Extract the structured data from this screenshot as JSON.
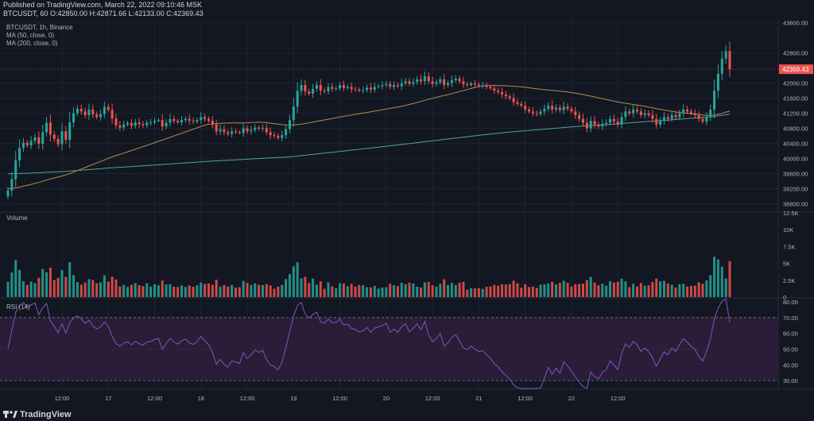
{
  "header": {
    "published": "Published on TradingView.com, March 22, 2022 09:10:46 MSK",
    "ohlc": "BTCUSDT, 60 O:42850.00 H:42871.66 L:42133.00 C:42369.43"
  },
  "brand": "TradingView",
  "colors": {
    "bg": "#131722",
    "up": "#26a69a",
    "down": "#ef5350",
    "ma50": "#b98a4e",
    "ma200": "#4fa39a",
    "rsi": "#7e57c2",
    "rsi_band": "#2b1c38",
    "grid": "#1f2330"
  },
  "chart_data": [
    {
      "type": "candlestick",
      "legend": [
        "BTCUSDT, 1h, Binance",
        "MA (50, close, 0)",
        "MA (200, close, 0)"
      ],
      "ylim": [
        38600,
        43700
      ],
      "y_ticks": [
        "43600.00",
        "42800.00",
        "42000.00",
        "41600.00",
        "41200.00",
        "40800.00",
        "40400.00",
        "40000.00",
        "39600.00",
        "39200.00",
        "38800.00"
      ],
      "y_tick_values": [
        43600,
        42800,
        42000,
        41600,
        41200,
        40800,
        40400,
        40000,
        39600,
        39200,
        38800
      ],
      "last_price": "42369.43",
      "last_price_value": 42369.43,
      "x_ticks": [
        "12:00",
        "17",
        "12:00",
        "18",
        "12:00",
        "19",
        "12:00",
        "20",
        "12:00",
        "21",
        "12:00",
        "22",
        "12:00"
      ],
      "closes": [
        39150,
        39450,
        39950,
        40280,
        40420,
        40350,
        40470,
        40560,
        40390,
        40700,
        40950,
        40630,
        40520,
        40380,
        40720,
        40500,
        40960,
        41200,
        41320,
        41250,
        41150,
        41300,
        41170,
        41100,
        41180,
        41370,
        41290,
        41060,
        40880,
        40820,
        40900,
        40940,
        40870,
        40960,
        40910,
        40880,
        40950,
        40960,
        41000,
        41020,
        40850,
        40950,
        41050,
        41000,
        40960,
        41020,
        41050,
        41000,
        40980,
        41020,
        41100,
        41050,
        41000,
        40900,
        40720,
        40780,
        40700,
        40650,
        40720,
        40700,
        40680,
        40800,
        40720,
        40760,
        40820,
        40790,
        40810,
        40700,
        40620,
        40600,
        40550,
        40620,
        40780,
        41020,
        41380,
        41800,
        41950,
        41780,
        41720,
        41850,
        41950,
        41800,
        41780,
        41900,
        41850,
        41860,
        41950,
        41870,
        41900,
        41840,
        41830,
        41800,
        41820,
        41880,
        41830,
        41900,
        41920,
        41950,
        41980,
        41900,
        41950,
        41920,
        42000,
        42050,
        41980,
        42030,
        42100,
        42050,
        42180,
        42050,
        41980,
        42020,
        42100,
        41950,
        42000,
        42080,
        42120,
        42050,
        41970,
        41950,
        41990,
        41960,
        41930,
        41940,
        41900,
        41860,
        41800,
        41760,
        41700,
        41650,
        41600,
        41500,
        41450,
        41400,
        41300,
        41250,
        41200,
        41180,
        41250,
        41320,
        41400,
        41300,
        41350,
        41280,
        41380,
        41320,
        41250,
        41150,
        41050,
        40950,
        40800,
        41000,
        40900,
        40850,
        40920,
        40950,
        41050,
        40980,
        40900,
        41100,
        41250,
        41200,
        41300,
        41250,
        41150,
        41200,
        41150,
        41050,
        40900,
        41000,
        41100,
        41050,
        41150,
        41100,
        41200,
        41300,
        41250,
        41200,
        41150,
        41050,
        40980,
        41100,
        41300,
        41800,
        42250,
        42650,
        42850,
        42369
      ],
      "volume": {
        "ylim": [
          0,
          12500
        ],
        "y_ticks": [
          "12.5K",
          "10K",
          "7.5K",
          "5K",
          "2.5K",
          "0"
        ],
        "y_tick_values": [
          12500,
          10000,
          7500,
          5000,
          2500,
          0
        ],
        "label": "Volume"
      },
      "rsi": {
        "ylim": [
          25,
          82
        ],
        "y_ticks": [
          "80.00",
          "70.00",
          "60.00",
          "50.00",
          "40.00",
          "30.00"
        ],
        "y_tick_values": [
          80,
          70,
          60,
          50,
          40,
          30
        ],
        "label": "RSI (14)",
        "band": [
          30,
          70
        ]
      }
    }
  ]
}
